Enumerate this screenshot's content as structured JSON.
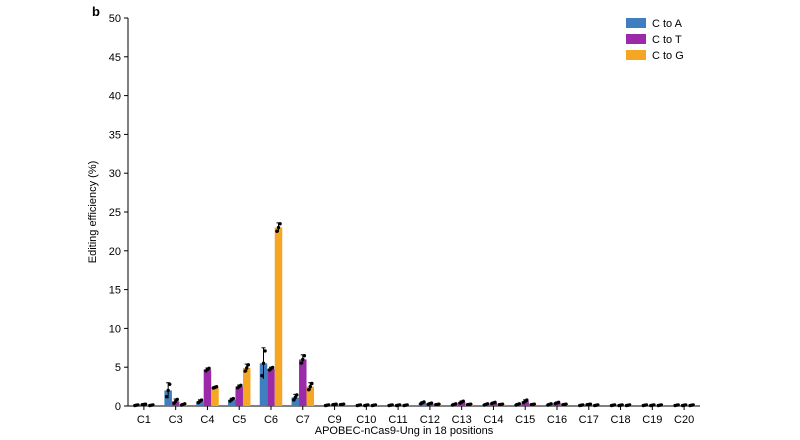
{
  "panel_label": "b",
  "chart_data": {
    "type": "bar",
    "title": "",
    "xlabel": "APOBEC-nCas9-Ung in 18 positions",
    "ylabel": "Editing efficiency (%)",
    "ylim": [
      0,
      50
    ],
    "yticks": [
      0,
      5,
      10,
      15,
      20,
      25,
      30,
      35,
      40,
      45,
      50
    ],
    "grid": false,
    "legend_position": "top-right",
    "categories": [
      "C1",
      "C3",
      "C4",
      "C5",
      "C6",
      "C7",
      "C9",
      "C10",
      "C11",
      "C12",
      "C13",
      "C14",
      "C15",
      "C16",
      "C17",
      "C18",
      "C19",
      "C20"
    ],
    "series": [
      {
        "name": "C to A",
        "color": "#3f7fbf",
        "values": [
          0.1,
          2.0,
          0.6,
          0.8,
          5.5,
          1.1,
          0.1,
          0.1,
          0.1,
          0.4,
          0.2,
          0.2,
          0.2,
          0.2,
          0.1,
          0.1,
          0.1,
          0.1
        ],
        "errors": [
          0.05,
          1.0,
          0.2,
          0.2,
          2.0,
          0.4,
          0.05,
          0.05,
          0.05,
          0.15,
          0.1,
          0.1,
          0.1,
          0.1,
          0.05,
          0.05,
          0.05,
          0.05
        ]
      },
      {
        "name": "C to T",
        "color": "#9a2aa8",
        "values": [
          0.2,
          0.6,
          4.7,
          2.5,
          4.8,
          6.0,
          0.2,
          0.1,
          0.1,
          0.3,
          0.5,
          0.4,
          0.6,
          0.4,
          0.2,
          0.1,
          0.1,
          0.1
        ],
        "errors": [
          0.05,
          0.3,
          0.2,
          0.2,
          0.2,
          0.6,
          0.05,
          0.05,
          0.05,
          0.1,
          0.15,
          0.1,
          0.2,
          0.1,
          0.05,
          0.05,
          0.05,
          0.05
        ]
      },
      {
        "name": "C to G",
        "color": "#f5a623",
        "values": [
          0.1,
          0.2,
          2.4,
          4.9,
          23.0,
          2.5,
          0.2,
          0.1,
          0.1,
          0.2,
          0.2,
          0.2,
          0.2,
          0.2,
          0.1,
          0.1,
          0.1,
          0.1
        ],
        "errors": [
          0.05,
          0.1,
          0.1,
          0.5,
          0.6,
          0.5,
          0.05,
          0.05,
          0.05,
          0.05,
          0.05,
          0.05,
          0.05,
          0.05,
          0.05,
          0.05,
          0.05,
          0.05
        ]
      }
    ]
  }
}
